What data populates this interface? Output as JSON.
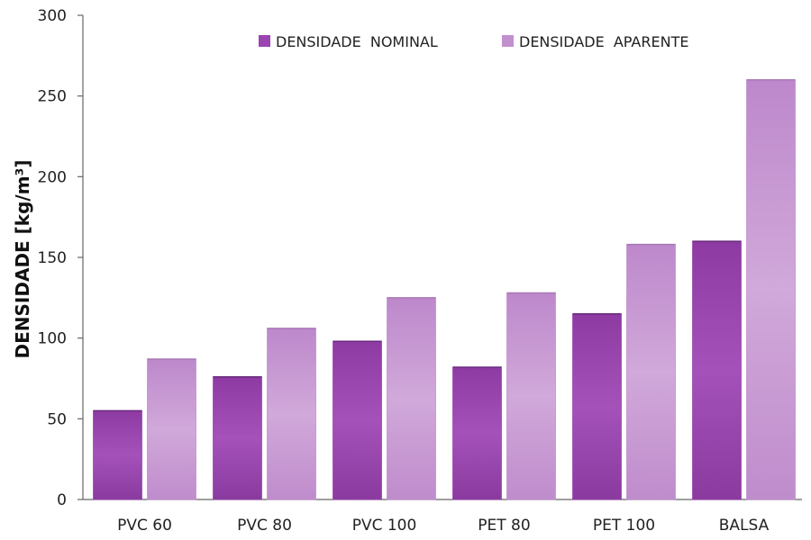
{
  "chart_data": {
    "type": "bar",
    "ylabel": "DENSIDADE  [kg/m³]",
    "ylim": [
      0,
      300
    ],
    "yticks": [
      "0",
      "50",
      "100",
      "150",
      "200",
      "250",
      "300"
    ],
    "grid": false,
    "legend_position": "top",
    "categories": [
      "PVC  60",
      "PVC  80",
      "PVC  100",
      "PET  80",
      "PET  100",
      "BALSA"
    ],
    "series": [
      {
        "name": "DENSIDADE  NOMINAL",
        "values": [
          55,
          76,
          98,
          82,
          115,
          160
        ],
        "color": "#9b45b0"
      },
      {
        "name": "DENSIDADE  APARENTE",
        "values": [
          87,
          106,
          125,
          128,
          158,
          260
        ],
        "color": "#c28fcf"
      }
    ]
  }
}
